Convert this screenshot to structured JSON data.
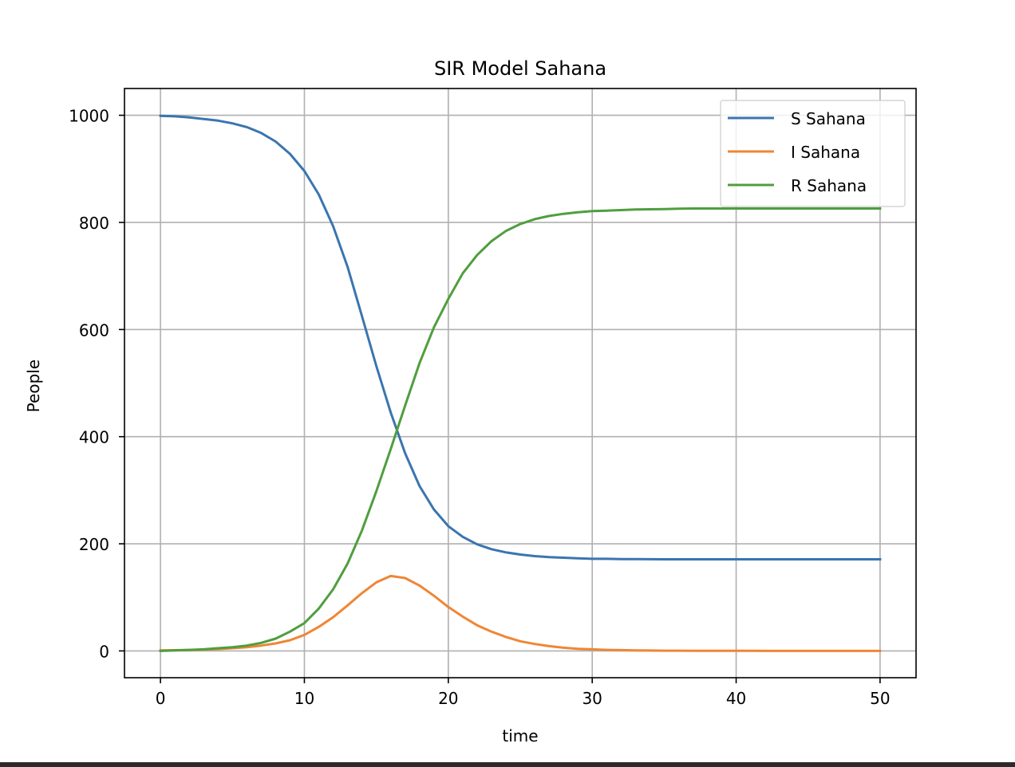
{
  "chart_data": {
    "type": "line",
    "title": "SIR Model Sahana",
    "xlabel": "time",
    "ylabel": "People",
    "xlim": [
      -2.5,
      52.5
    ],
    "ylim": [
      -50,
      1050
    ],
    "xticks": [
      0,
      10,
      20,
      30,
      40,
      50
    ],
    "yticks": [
      0,
      200,
      400,
      600,
      800,
      1000
    ],
    "grid": true,
    "legend_position": "top-right",
    "x": [
      0,
      1,
      2,
      3,
      4,
      5,
      6,
      7,
      8,
      9,
      10,
      11,
      12,
      13,
      14,
      15,
      16,
      17,
      18,
      19,
      20,
      21,
      22,
      23,
      24,
      25,
      26,
      27,
      28,
      29,
      30,
      31,
      32,
      33,
      34,
      35,
      36,
      37,
      38,
      39,
      40,
      41,
      42,
      43,
      44,
      45,
      46,
      47,
      48,
      49,
      50
    ],
    "series": [
      {
        "name": "S Sahana",
        "color": "#3a75b0",
        "values": [
          999,
          998,
          996,
          993,
          990,
          985,
          978,
          967,
          951,
          928,
          896,
          852,
          793,
          717,
          625,
          532,
          445,
          369,
          308,
          264,
          233,
          213,
          199,
          190,
          184,
          180,
          177,
          175,
          174,
          173,
          172,
          172,
          171.5,
          171.3,
          171.2,
          171.1,
          171,
          171,
          171,
          171,
          171,
          171,
          171,
          171,
          171,
          171,
          171,
          171,
          171,
          171,
          171
        ]
      },
      {
        "name": "I Sahana",
        "color": "#ef8636",
        "values": [
          1,
          1.3,
          1.8,
          2.5,
          3.5,
          5,
          7,
          10,
          14,
          20,
          30,
          45,
          63,
          85,
          108,
          128,
          140,
          136,
          122,
          103,
          82,
          64,
          48,
          36,
          26,
          18,
          13,
          9,
          6,
          4,
          3,
          2,
          1.5,
          1,
          0.8,
          0.5,
          0.4,
          0.3,
          0.2,
          0.1,
          0.1,
          0.1,
          0,
          0,
          0,
          0,
          0,
          0,
          0,
          0,
          0
        ]
      },
      {
        "name": "R Sahana",
        "color": "#4f9e3e",
        "values": [
          0,
          1,
          2,
          3,
          5,
          7,
          10,
          15,
          23,
          36,
          52,
          79,
          115,
          163,
          225,
          298,
          377,
          458,
          537,
          604,
          657,
          705,
          739,
          765,
          784,
          797,
          806,
          812,
          816,
          819,
          821,
          822,
          823,
          824,
          824.5,
          825,
          825.5,
          826,
          826,
          826,
          826,
          826,
          826,
          826,
          826,
          826,
          826,
          826,
          826,
          826,
          826
        ]
      }
    ]
  }
}
